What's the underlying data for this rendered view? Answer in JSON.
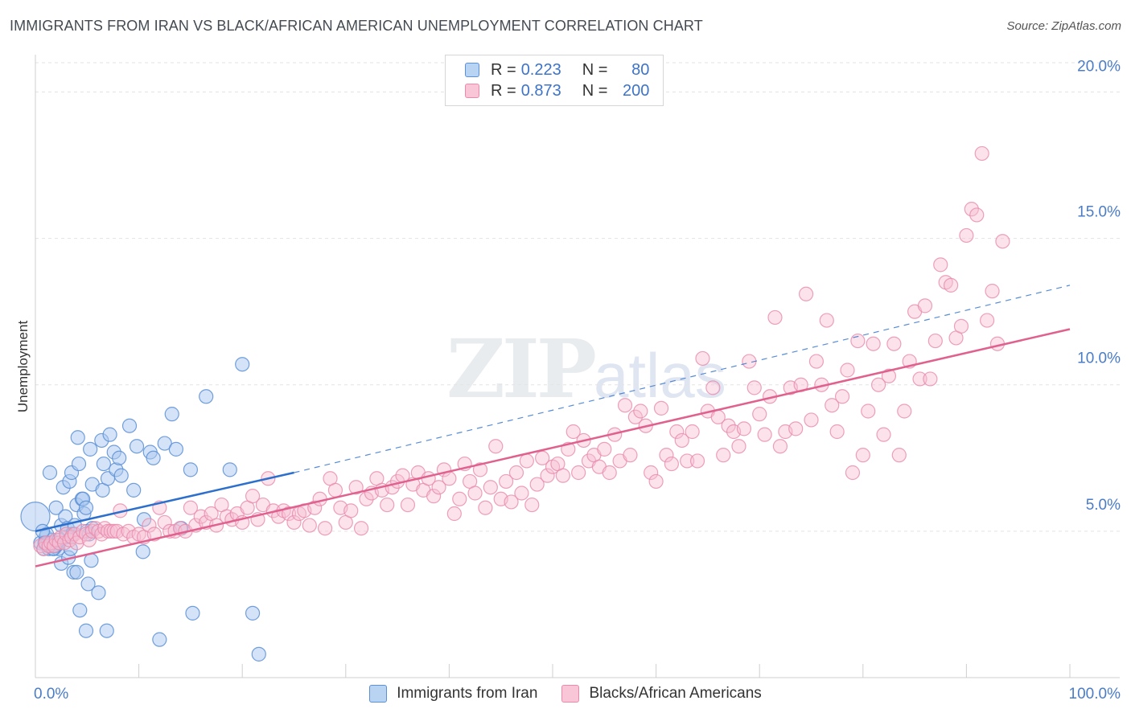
{
  "title": "IMMIGRANTS FROM IRAN VS BLACK/AFRICAN AMERICAN UNEMPLOYMENT CORRELATION CHART",
  "source": "Source: ZipAtlas.com",
  "watermark": {
    "zip": "ZIP",
    "atlas": "atlas"
  },
  "legend": {
    "r_label": "R =",
    "n_label": "N =",
    "series": [
      {
        "name": "Immigrants from Iran",
        "r": "0.223",
        "n": "80"
      },
      {
        "name": "Blacks/African Americans",
        "r": "0.873",
        "n": "200"
      }
    ]
  },
  "colors": {
    "blue_fill": "#a9c8ef",
    "blue_stroke": "#5b8fd6",
    "blue_line": "#2d6fcc",
    "pink_fill": "#f6bfd2",
    "pink_stroke": "#e98aab",
    "pink_line": "#e0608e",
    "grid": "#e3e3e3",
    "tick_label": "#4a7cc8"
  },
  "chart_data": {
    "type": "scatter",
    "title": "IMMIGRANTS FROM IRAN VS BLACK/AFRICAN AMERICAN UNEMPLOYMENT CORRELATION CHART",
    "xlabel": "",
    "ylabel": "Unemployment",
    "xlim": [
      0,
      100
    ],
    "ylim": [
      0,
      21
    ],
    "x_tick_labels": {
      "left": "0.0%",
      "right": "100.0%"
    },
    "y_ticks": [
      {
        "value": 5,
        "label": "5.0%"
      },
      {
        "value": 10,
        "label": "10.0%"
      },
      {
        "value": 15,
        "label": "15.0%"
      },
      {
        "value": 20,
        "label": "20.0%"
      }
    ],
    "series": [
      {
        "name": "Immigrants from Iran",
        "regression": {
          "x0": 0,
          "y0": 5.0,
          "x1": 25,
          "y1": 7.0,
          "dashed_to_x": 100,
          "dashed_to_y": 13.4
        },
        "points": [
          [
            0.0,
            5.5
          ],
          [
            0.5,
            4.6
          ],
          [
            0.8,
            4.4
          ],
          [
            1.0,
            4.8
          ],
          [
            1.2,
            4.6
          ],
          [
            1.3,
            4.4
          ],
          [
            1.5,
            4.5
          ],
          [
            1.6,
            4.7
          ],
          [
            1.8,
            4.4
          ],
          [
            2.0,
            4.6
          ],
          [
            2.2,
            4.4
          ],
          [
            1.4,
            7.0
          ],
          [
            2.0,
            5.8
          ],
          [
            2.5,
            5.2
          ],
          [
            2.5,
            3.9
          ],
          [
            2.7,
            6.5
          ],
          [
            2.9,
            5.5
          ],
          [
            3.0,
            4.8
          ],
          [
            3.1,
            5.1
          ],
          [
            3.2,
            4.1
          ],
          [
            3.3,
            6.7
          ],
          [
            3.5,
            7.0
          ],
          [
            3.6,
            4.9
          ],
          [
            3.7,
            3.6
          ],
          [
            3.8,
            5.2
          ],
          [
            4.0,
            5.9
          ],
          [
            4.0,
            3.6
          ],
          [
            4.1,
            8.2
          ],
          [
            4.2,
            7.3
          ],
          [
            4.3,
            2.3
          ],
          [
            4.5,
            6.1
          ],
          [
            4.6,
            6.1
          ],
          [
            4.7,
            5.6
          ],
          [
            4.9,
            1.6
          ],
          [
            4.9,
            5.8
          ],
          [
            5.0,
            5.0
          ],
          [
            5.1,
            3.2
          ],
          [
            5.2,
            4.9
          ],
          [
            5.3,
            7.8
          ],
          [
            5.4,
            4.0
          ],
          [
            5.5,
            5.1
          ],
          [
            5.5,
            6.6
          ],
          [
            6.1,
            2.9
          ],
          [
            6.4,
            8.1
          ],
          [
            6.5,
            6.4
          ],
          [
            6.6,
            7.3
          ],
          [
            6.9,
            1.6
          ],
          [
            7.0,
            6.8
          ],
          [
            7.2,
            8.3
          ],
          [
            7.6,
            7.7
          ],
          [
            7.8,
            7.1
          ],
          [
            8.1,
            7.5
          ],
          [
            8.3,
            6.9
          ],
          [
            9.1,
            8.6
          ],
          [
            9.5,
            6.4
          ],
          [
            9.8,
            7.9
          ],
          [
            10.5,
            5.4
          ],
          [
            10.4,
            4.3
          ],
          [
            11.1,
            7.7
          ],
          [
            11.4,
            7.5
          ],
          [
            12.0,
            1.3
          ],
          [
            12.5,
            8.0
          ],
          [
            13.6,
            7.8
          ],
          [
            14.1,
            5.1
          ],
          [
            13.2,
            9.0
          ],
          [
            15.0,
            7.1
          ],
          [
            15.2,
            2.2
          ],
          [
            16.5,
            9.6
          ],
          [
            18.8,
            7.1
          ],
          [
            20.0,
            10.7
          ],
          [
            21.0,
            2.2
          ],
          [
            21.6,
            0.8
          ],
          [
            2.0,
            4.5
          ],
          [
            1.1,
            4.9
          ],
          [
            0.7,
            5.0
          ],
          [
            1.9,
            4.5
          ],
          [
            2.3,
            4.7
          ],
          [
            3.4,
            4.4
          ],
          [
            0.9,
            4.6
          ],
          [
            1.7,
            4.4
          ]
        ]
      },
      {
        "name": "Blacks/African Americans",
        "regression": {
          "x0": 0,
          "y0": 3.8,
          "x1": 100,
          "y1": 11.9
        },
        "points": [
          [
            0.5,
            4.5
          ],
          [
            0.8,
            4.4
          ],
          [
            1.0,
            4.6
          ],
          [
            1.3,
            4.5
          ],
          [
            1.5,
            4.6
          ],
          [
            1.8,
            4.5
          ],
          [
            2.0,
            4.7
          ],
          [
            2.3,
            4.6
          ],
          [
            2.5,
            4.8
          ],
          [
            2.8,
            4.6
          ],
          [
            3.0,
            4.9
          ],
          [
            3.3,
            4.7
          ],
          [
            3.5,
            4.8
          ],
          [
            3.8,
            4.9
          ],
          [
            4.0,
            4.6
          ],
          [
            4.3,
            4.8
          ],
          [
            4.6,
            5.0
          ],
          [
            4.9,
            4.9
          ],
          [
            5.2,
            4.7
          ],
          [
            5.5,
            5.0
          ],
          [
            5.8,
            5.1
          ],
          [
            6.1,
            5.0
          ],
          [
            6.4,
            4.9
          ],
          [
            6.7,
            5.1
          ],
          [
            7.0,
            5.0
          ],
          [
            7.3,
            5.0
          ],
          [
            7.6,
            5.0
          ],
          [
            7.9,
            5.0
          ],
          [
            8.2,
            5.7
          ],
          [
            8.5,
            4.9
          ],
          [
            9.0,
            5.0
          ],
          [
            9.5,
            4.8
          ],
          [
            10.0,
            4.9
          ],
          [
            10.5,
            4.8
          ],
          [
            11.0,
            5.2
          ],
          [
            11.5,
            4.9
          ],
          [
            12.0,
            5.8
          ],
          [
            12.5,
            5.3
          ],
          [
            13.0,
            5.0
          ],
          [
            13.5,
            5.0
          ],
          [
            14.0,
            5.1
          ],
          [
            14.5,
            5.0
          ],
          [
            15.0,
            5.8
          ],
          [
            15.5,
            5.2
          ],
          [
            16.0,
            5.5
          ],
          [
            16.5,
            5.3
          ],
          [
            17.0,
            5.6
          ],
          [
            17.5,
            5.2
          ],
          [
            18.0,
            5.9
          ],
          [
            18.5,
            5.5
          ],
          [
            19.0,
            5.4
          ],
          [
            19.5,
            5.6
          ],
          [
            20.0,
            5.3
          ],
          [
            20.5,
            5.8
          ],
          [
            21.0,
            6.2
          ],
          [
            21.5,
            5.4
          ],
          [
            22.0,
            5.9
          ],
          [
            22.5,
            6.8
          ],
          [
            23.0,
            5.7
          ],
          [
            23.5,
            5.5
          ],
          [
            24.0,
            5.7
          ],
          [
            24.5,
            5.6
          ],
          [
            25.0,
            5.3
          ],
          [
            25.5,
            5.6
          ],
          [
            26.0,
            5.7
          ],
          [
            26.5,
            5.2
          ],
          [
            27.0,
            5.8
          ],
          [
            27.5,
            6.1
          ],
          [
            28.0,
            5.1
          ],
          [
            28.5,
            6.8
          ],
          [
            29.0,
            6.4
          ],
          [
            29.5,
            5.8
          ],
          [
            30.0,
            5.3
          ],
          [
            30.5,
            5.7
          ],
          [
            31.0,
            6.5
          ],
          [
            31.5,
            5.1
          ],
          [
            32.0,
            6.1
          ],
          [
            32.5,
            6.3
          ],
          [
            33.0,
            6.8
          ],
          [
            33.5,
            6.4
          ],
          [
            34.0,
            5.9
          ],
          [
            34.5,
            6.5
          ],
          [
            35.0,
            6.7
          ],
          [
            35.5,
            6.9
          ],
          [
            36.0,
            5.9
          ],
          [
            36.5,
            6.6
          ],
          [
            37.0,
            7.0
          ],
          [
            37.5,
            6.4
          ],
          [
            38.0,
            6.8
          ],
          [
            38.5,
            6.2
          ],
          [
            39.0,
            6.5
          ],
          [
            39.5,
            7.1
          ],
          [
            40.0,
            6.8
          ],
          [
            40.5,
            5.6
          ],
          [
            41.0,
            6.1
          ],
          [
            41.5,
            7.3
          ],
          [
            42.0,
            6.7
          ],
          [
            42.5,
            6.3
          ],
          [
            43.0,
            7.1
          ],
          [
            43.5,
            5.8
          ],
          [
            44.0,
            6.5
          ],
          [
            44.5,
            7.9
          ],
          [
            45.0,
            6.1
          ],
          [
            45.5,
            6.7
          ],
          [
            46.0,
            6.0
          ],
          [
            46.5,
            7.0
          ],
          [
            47.0,
            6.3
          ],
          [
            47.5,
            7.4
          ],
          [
            48.0,
            5.9
          ],
          [
            48.5,
            6.6
          ],
          [
            49.0,
            7.5
          ],
          [
            49.5,
            6.9
          ],
          [
            50.0,
            7.2
          ],
          [
            50.5,
            7.3
          ],
          [
            51.0,
            6.9
          ],
          [
            51.5,
            7.8
          ],
          [
            52.0,
            8.4
          ],
          [
            52.5,
            7.0
          ],
          [
            53.0,
            8.1
          ],
          [
            53.5,
            7.4
          ],
          [
            54.0,
            7.6
          ],
          [
            54.5,
            7.2
          ],
          [
            55.0,
            7.8
          ],
          [
            55.5,
            7.0
          ],
          [
            56.0,
            8.3
          ],
          [
            56.5,
            7.4
          ],
          [
            57.0,
            9.3
          ],
          [
            57.5,
            7.6
          ],
          [
            58.0,
            8.9
          ],
          [
            58.5,
            9.1
          ],
          [
            59.0,
            8.6
          ],
          [
            59.5,
            7.0
          ],
          [
            60.0,
            6.7
          ],
          [
            60.5,
            9.2
          ],
          [
            61.0,
            7.6
          ],
          [
            61.5,
            7.3
          ],
          [
            62.0,
            8.4
          ],
          [
            62.5,
            8.1
          ],
          [
            63.0,
            7.4
          ],
          [
            63.5,
            8.4
          ],
          [
            64.0,
            7.4
          ],
          [
            64.5,
            10.9
          ],
          [
            65.0,
            9.1
          ],
          [
            65.5,
            9.9
          ],
          [
            66.0,
            8.9
          ],
          [
            66.5,
            7.6
          ],
          [
            67.0,
            8.6
          ],
          [
            67.5,
            8.4
          ],
          [
            68.0,
            7.9
          ],
          [
            68.5,
            8.5
          ],
          [
            69.0,
            10.8
          ],
          [
            69.5,
            9.9
          ],
          [
            70.0,
            9.0
          ],
          [
            70.5,
            8.3
          ],
          [
            71.0,
            9.6
          ],
          [
            71.5,
            12.3
          ],
          [
            72.0,
            7.9
          ],
          [
            72.5,
            8.4
          ],
          [
            73.0,
            9.9
          ],
          [
            73.5,
            8.5
          ],
          [
            74.0,
            10.0
          ],
          [
            74.5,
            13.1
          ],
          [
            75.0,
            8.8
          ],
          [
            75.5,
            10.8
          ],
          [
            76.0,
            10.0
          ],
          [
            76.5,
            12.2
          ],
          [
            77.0,
            9.3
          ],
          [
            77.5,
            8.4
          ],
          [
            78.0,
            9.6
          ],
          [
            78.5,
            10.5
          ],
          [
            79.0,
            7.0
          ],
          [
            79.5,
            11.5
          ],
          [
            80.0,
            7.6
          ],
          [
            80.5,
            9.1
          ],
          [
            81.0,
            11.4
          ],
          [
            81.5,
            10.0
          ],
          [
            82.0,
            8.3
          ],
          [
            82.5,
            10.3
          ],
          [
            83.0,
            11.4
          ],
          [
            83.5,
            7.6
          ],
          [
            84.0,
            9.1
          ],
          [
            84.5,
            10.8
          ],
          [
            85.0,
            12.5
          ],
          [
            85.5,
            10.2
          ],
          [
            86.0,
            12.7
          ],
          [
            86.5,
            10.2
          ],
          [
            87.0,
            11.5
          ],
          [
            87.5,
            14.1
          ],
          [
            88.0,
            13.5
          ],
          [
            88.5,
            13.4
          ],
          [
            89.0,
            11.6
          ],
          [
            89.5,
            12.0
          ],
          [
            90.0,
            15.1
          ],
          [
            90.5,
            16.0
          ],
          [
            91.0,
            15.8
          ],
          [
            91.5,
            17.9
          ],
          [
            92.0,
            12.2
          ],
          [
            92.5,
            13.2
          ],
          [
            93.0,
            11.4
          ],
          [
            93.5,
            14.9
          ]
        ]
      }
    ]
  }
}
